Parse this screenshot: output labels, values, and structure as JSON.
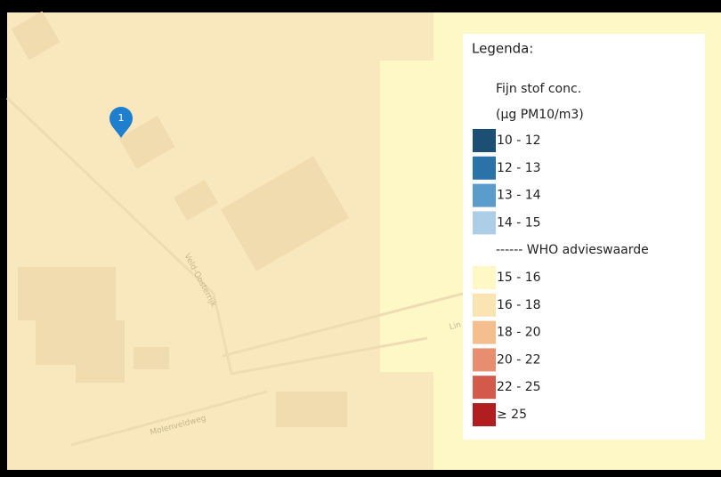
{
  "map": {
    "marker": {
      "label": "1"
    },
    "streets": [
      "Veld-Oosterrijk",
      "Molenveldweg",
      "Lin"
    ],
    "legend": {
      "title": "Legenda:",
      "subtitle": [
        "Fijn stof conc.",
        "(µg PM10/m3)"
      ],
      "items": [
        {
          "label": "10 - 12",
          "color": "#1b4f73"
        },
        {
          "label": "12 - 13",
          "color": "#2a72a8"
        },
        {
          "label": "13 - 14",
          "color": "#5b9ccd"
        },
        {
          "label": "14 - 15",
          "color": "#aecde6"
        },
        {
          "label": "------ WHO advieswaarde"
        },
        {
          "label": "15 - 16",
          "color": "#fdf8c6"
        },
        {
          "label": "16 - 18",
          "color": "#fae4b4"
        },
        {
          "label": "18 - 20",
          "color": "#f4bf8e"
        },
        {
          "label": "20 - 22",
          "color": "#e88e70"
        },
        {
          "label": "22 - 25",
          "color": "#d35a4a"
        },
        {
          "label": "≥ 25",
          "color": "#b21e1f"
        }
      ]
    }
  }
}
